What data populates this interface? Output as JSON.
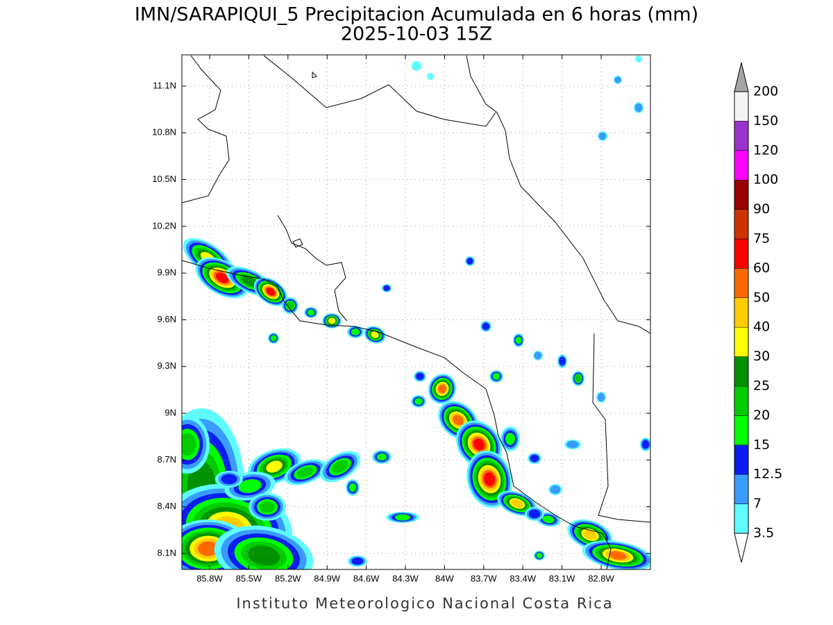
{
  "header": {
    "title": "IMN/SARAPIQUI_5 Precipitacion Acumulada en 6 horas (mm)",
    "subtitle": "2025-10-03 15Z"
  },
  "map": {
    "lat_ticks": [
      "11.1N",
      "10.8N",
      "10.5N",
      "10.2N",
      "9.9N",
      "9.6N",
      "9.3N",
      "9N",
      "8.7N",
      "8.4N",
      "8.1N"
    ],
    "lon_ticks": [
      "85.8W",
      "85.5W",
      "85.2W",
      "84.9W",
      "84.6W",
      "84.3W",
      "84W",
      "83.7W",
      "83.4W",
      "83.1W",
      "82.8W"
    ]
  },
  "colorbar": {
    "labels": [
      3.5,
      7,
      12.5,
      15,
      20,
      25,
      30,
      40,
      50,
      60,
      75,
      90,
      100,
      120,
      150,
      200
    ],
    "colors": [
      "#5ffcff",
      "#3a9bff",
      "#0a1ef0",
      "#00ff00",
      "#00cc00",
      "#009100",
      "#ffff00",
      "#ffcc00",
      "#ff6a00",
      "#ff0000",
      "#cc3300",
      "#990000",
      "#ff00ff",
      "#9933cc",
      "#f4f4f4"
    ],
    "over_color": "#a5a5a5",
    "under_color": "#ffffff"
  },
  "footer": {
    "credit": "Instituto Meteorologico Nacional Costa Rica"
  }
}
